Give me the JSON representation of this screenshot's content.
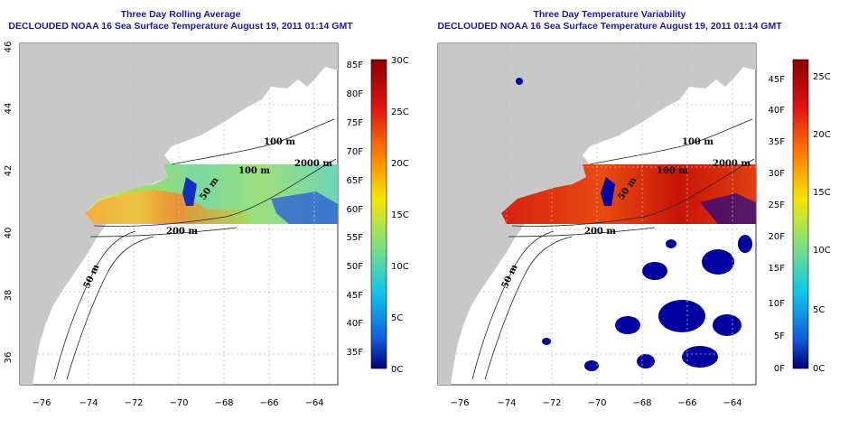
{
  "left": {
    "title_line1": "Three Day Rolling Average",
    "title_line2": "DECLOUDED NOAA 16 Sea Surface Temperature August 19, 2011 01:14 GMT",
    "f_ticks": [
      "85F",
      "80F",
      "75F",
      "70F",
      "65F",
      "60F",
      "55F",
      "50F",
      "45F",
      "40F",
      "35F"
    ],
    "c_ticks": [
      "30C",
      "25C",
      "20C",
      "15C",
      "10C",
      "5C",
      "0C"
    ]
  },
  "right": {
    "title_line1": "Three Day Temperature Variability",
    "title_line2": "DECLOUDED NOAA 16 Sea Surface Temperature August 19, 2011 01:14 GMT",
    "f_ticks": [
      "45F",
      "40F",
      "35F",
      "30F",
      "25F",
      "20F",
      "15F",
      "10F",
      "5F",
      "0F"
    ],
    "c_ticks": [
      "25C",
      "20C",
      "15C",
      "10C",
      "5C",
      "0C"
    ]
  },
  "lat_ticks": [
    "46",
    "44",
    "42",
    "40",
    "38",
    "36"
  ],
  "lon_ticks": [
    "−76",
    "−74",
    "−72",
    "−70",
    "−68",
    "−66",
    "−64"
  ],
  "contour_labels": [
    "100 m",
    "2000 m",
    "100 m",
    "50 m",
    "200 m",
    "50 m"
  ],
  "colors": {
    "title": "#1a1aa8",
    "land": "#c8c8c8",
    "missing": "#0000a0"
  }
}
